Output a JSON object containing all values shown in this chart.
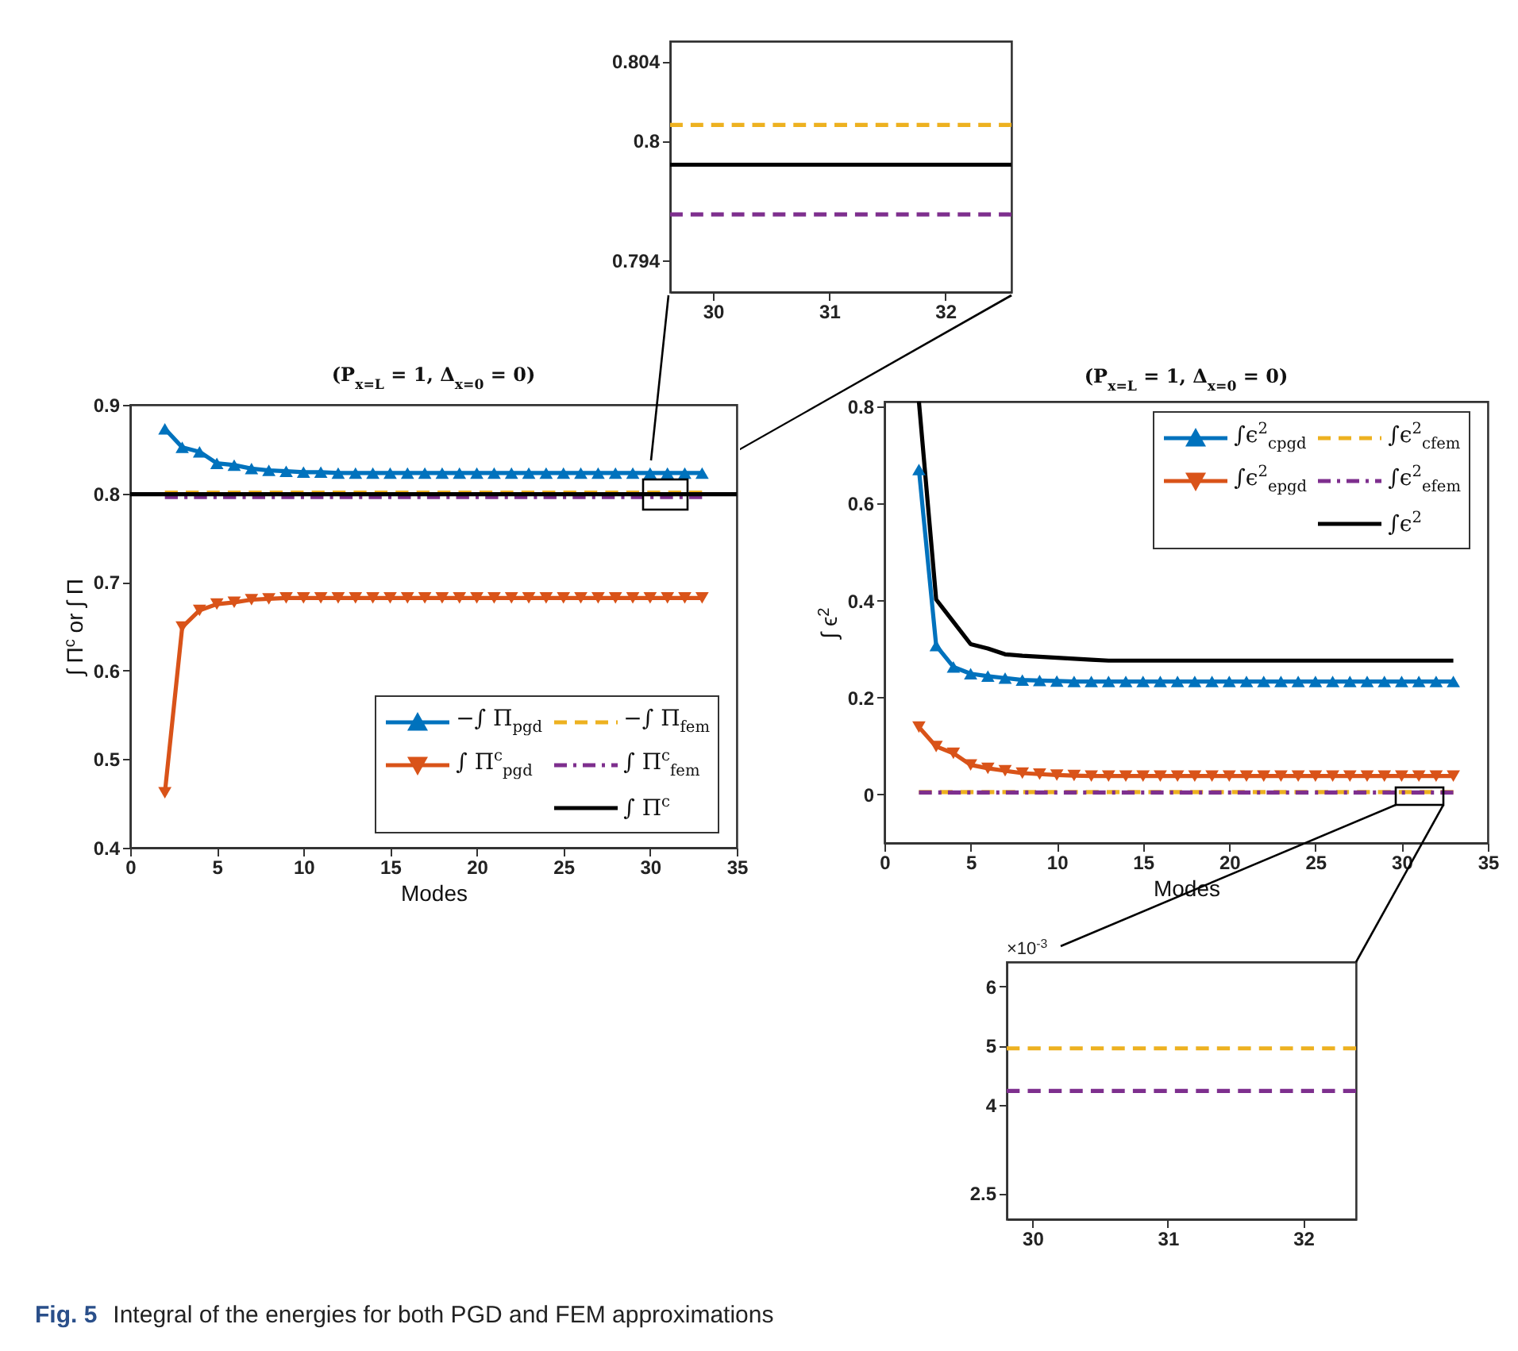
{
  "chart_data": [
    {
      "type": "line",
      "title": "(P$_{x=L}$ = 1, Δ$_{x=0}$ = 0)",
      "xlabel": "Modes",
      "ylabel": "∫ Π$^{c}$  or  ∫ Π",
      "x": [
        2,
        3,
        4,
        5,
        6,
        7,
        8,
        9,
        10,
        11,
        12,
        13,
        14,
        15,
        16,
        17,
        18,
        19,
        20,
        21,
        22,
        23,
        24,
        25,
        26,
        27,
        28,
        29,
        30,
        31,
        32,
        33
      ],
      "xlim": [
        0,
        35
      ],
      "xticks": [
        0,
        5,
        10,
        15,
        20,
        25,
        30,
        35
      ],
      "ylim": [
        0.4,
        0.9
      ],
      "yticks": [
        0.4,
        0.5,
        0.6,
        0.7,
        0.8,
        0.9
      ],
      "legend": "bottom right",
      "grid": false,
      "series": [
        {
          "name": "−∫ Π$_{pgd}$",
          "color": "#0072bd",
          "marker": "triangle",
          "line_style": "solid",
          "values": [
            0.873,
            0.852,
            0.847,
            0.834,
            0.832,
            0.828,
            0.826,
            0.825,
            0.824,
            0.824,
            0.823,
            0.823,
            0.823,
            0.823,
            0.823,
            0.823,
            0.823,
            0.823,
            0.823,
            0.823,
            0.823,
            0.823,
            0.823,
            0.823,
            0.823,
            0.823,
            0.823,
            0.823,
            0.823,
            0.823,
            0.823,
            0.823
          ]
        },
        {
          "name": "−∫ Π$_{fem}$",
          "color": "#edb120",
          "line_style": "dashed",
          "x": [
            2,
            33
          ],
          "values": [
            0.801,
            0.801
          ]
        },
        {
          "name": "∫ Π$^{c}$$_{pgd}$",
          "color": "#d95319",
          "marker": "triangle-down",
          "line_style": "solid",
          "values": [
            0.462,
            0.649,
            0.668,
            0.675,
            0.677,
            0.68,
            0.681,
            0.682,
            0.682,
            0.682,
            0.682,
            0.682,
            0.682,
            0.682,
            0.682,
            0.682,
            0.682,
            0.682,
            0.682,
            0.682,
            0.682,
            0.682,
            0.682,
            0.682,
            0.682,
            0.682,
            0.682,
            0.682,
            0.682,
            0.682,
            0.682,
            0.682
          ]
        },
        {
          "name": "∫ Π$^{c}$$_{fem}$",
          "color": "#7e2f8e",
          "line_style": "dashdot",
          "x": [
            2,
            33
          ],
          "values": [
            0.796,
            0.796
          ]
        },
        {
          "name": "∫ Π$^{c}$",
          "color": "#000000",
          "line_style": "solid",
          "x": [
            0,
            35
          ],
          "values": [
            0.799,
            0.799
          ]
        }
      ]
    },
    {
      "type": "line",
      "title": "(P$_{x=L}$ = 1, Δ$_{x=0}$ = 0)",
      "xlabel": "Modes",
      "ylabel": "∫ ϵ$^{2}$",
      "x": [
        2,
        3,
        4,
        5,
        6,
        7,
        8,
        9,
        10,
        11,
        12,
        13,
        14,
        15,
        16,
        17,
        18,
        19,
        20,
        21,
        22,
        23,
        24,
        25,
        26,
        27,
        28,
        29,
        30,
        31,
        32,
        33
      ],
      "xlim": [
        0,
        35
      ],
      "xticks": [
        0,
        5,
        10,
        15,
        20,
        25,
        30,
        35
      ],
      "ylim": [
        -0.1,
        0.81
      ],
      "yticks": [
        0,
        0.2,
        0.4,
        0.6,
        0.8
      ],
      "legend": "top right",
      "grid": false,
      "series": [
        {
          "name": "∫ϵ$^{2}$$_{c}$$_{pgd}$",
          "color": "#0072bd",
          "marker": "triangle",
          "line_style": "solid",
          "values": [
            0.67,
            0.307,
            0.263,
            0.249,
            0.244,
            0.24,
            0.236,
            0.235,
            0.234,
            0.233,
            0.233,
            0.233,
            0.233,
            0.233,
            0.233,
            0.233,
            0.233,
            0.233,
            0.233,
            0.233,
            0.233,
            0.233,
            0.233,
            0.233,
            0.233,
            0.233,
            0.233,
            0.233,
            0.233,
            0.233,
            0.233,
            0.233
          ]
        },
        {
          "name": "∫ϵ$^{2}$$_{c}$$_{fem}$",
          "color": "#edb120",
          "line_style": "dashed",
          "x": [
            2,
            33
          ],
          "values": [
            0.005,
            0.005
          ]
        },
        {
          "name": "∫ϵ$^{2}$$_{e}$$_{pgd}$",
          "color": "#d95319",
          "marker": "triangle-down",
          "line_style": "solid",
          "values": [
            0.139,
            0.099,
            0.085,
            0.061,
            0.054,
            0.049,
            0.044,
            0.042,
            0.04,
            0.039,
            0.038,
            0.038,
            0.038,
            0.038,
            0.038,
            0.038,
            0.038,
            0.038,
            0.038,
            0.038,
            0.038,
            0.038,
            0.038,
            0.038,
            0.038,
            0.038,
            0.038,
            0.038,
            0.038,
            0.038,
            0.038,
            0.038
          ]
        },
        {
          "name": "∫ϵ$^{2}$$_{e}$$_{fem}$",
          "color": "#7e2f8e",
          "line_style": "dashdot",
          "x": [
            2,
            33
          ],
          "values": [
            0.004,
            0.004
          ]
        },
        {
          "name": "∫ϵ$^{2}$",
          "color": "#000000",
          "line_style": "solid",
          "values": [
            0.81,
            0.402,
            0.356,
            0.31,
            0.301,
            0.289,
            0.286,
            0.284,
            0.282,
            0.28,
            0.278,
            0.276,
            0.276,
            0.276,
            0.276,
            0.276,
            0.276,
            0.276,
            0.276,
            0.276,
            0.276,
            0.276,
            0.276,
            0.276,
            0.276,
            0.276,
            0.276,
            0.276,
            0.276,
            0.276,
            0.276,
            0.276
          ]
        }
      ]
    },
    {
      "type": "line",
      "x": [
        29.63,
        32.57
      ],
      "xlim": [
        29.63,
        32.57
      ],
      "xticks": [
        30,
        31,
        32
      ],
      "ylim": [
        0.7924,
        0.805
      ],
      "yticks": [
        0.794,
        0.8,
        0.804
      ],
      "grid": false,
      "series": [
        {
          "color": "#edb120",
          "line_style": "dashed",
          "values": [
            0.8008,
            0.8008
          ]
        },
        {
          "color": "#000000",
          "line_style": "solid",
          "values": [
            0.7988,
            0.7988
          ]
        },
        {
          "color": "#7e2f8e",
          "line_style": "dashed",
          "values": [
            0.7963,
            0.7963
          ]
        }
      ]
    },
    {
      "type": "line",
      "annotations": [
        "×10$^{-3}$"
      ],
      "x": [
        29.81,
        32.39
      ],
      "xlim": [
        29.81,
        32.39
      ],
      "xticks": [
        30,
        31,
        32
      ],
      "ylim": [
        2.06,
        6.41
      ],
      "yticks": [
        2.5,
        4,
        5,
        6
      ],
      "grid": false,
      "series": [
        {
          "color": "#edb120",
          "line_style": "dashed",
          "values": [
            4.95,
            4.95
          ]
        },
        {
          "color": "#7e2f8e",
          "line_style": "dashed",
          "values": [
            4.23,
            4.23
          ]
        }
      ]
    },
    {
      "type": "other",
      "annotations": [
        "Fig. 5",
        "Integral of the energies for both PGD and FEM approximations"
      ]
    }
  ]
}
